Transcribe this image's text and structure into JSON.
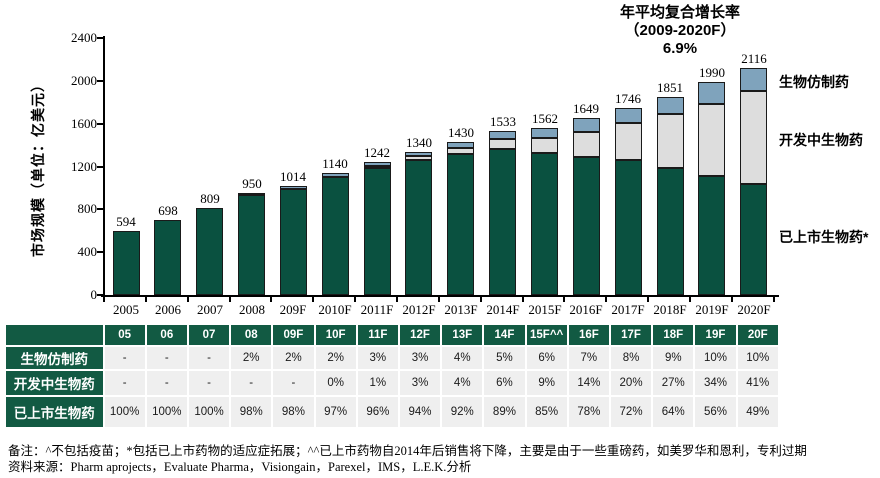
{
  "chart_data": {
    "type": "bar",
    "stacked": true,
    "ylabel": "市场规模（单位：亿美元）",
    "annotation": [
      "年平均复合增长率",
      "（2009-2020F）",
      "6.9%"
    ],
    "categories": [
      "2005",
      "2006",
      "2007",
      "2008",
      "209F",
      "2010F",
      "2011F",
      "2012F",
      "2013F",
      "2014F",
      "2015F",
      "2016F",
      "2017F",
      "2018F",
      "2019F",
      "2020F"
    ],
    "totals": [
      594,
      698,
      809,
      950,
      1014,
      1140,
      1242,
      1340,
      1430,
      1533,
      1562,
      1649,
      1746,
      1851,
      1990,
      2116
    ],
    "series": [
      {
        "name": "已上市生物药",
        "color": "#0A5140",
        "pct": [
          100,
          100,
          100,
          98,
          98,
          97,
          96,
          94,
          92,
          89,
          85,
          78,
          72,
          64,
          56,
          49
        ]
      },
      {
        "name": "开发中生物药",
        "color": "#DDDDDD",
        "pct": [
          0,
          0,
          0,
          0,
          0,
          0,
          1,
          3,
          4,
          6,
          9,
          14,
          20,
          27,
          34,
          41
        ]
      },
      {
        "name": "生物仿制药",
        "color": "#7FA3BC",
        "pct": [
          0,
          0,
          0,
          2,
          2,
          2,
          3,
          3,
          4,
          5,
          6,
          7,
          8,
          9,
          10,
          10
        ]
      }
    ],
    "legend_labels": [
      "生物仿制药",
      "开发中生物药",
      "已上市生物药*"
    ],
    "y_ticks": [
      0,
      400,
      800,
      1200,
      1600,
      2000,
      2400
    ],
    "ylim": [
      0,
      2400
    ],
    "grid": false,
    "legend_position": "right"
  },
  "table": {
    "col_headers": [
      "",
      "05",
      "06",
      "07",
      "08",
      "09F",
      "10F",
      "11F",
      "12F",
      "13F",
      "14F",
      "15F^^",
      "16F",
      "17F",
      "18F",
      "19F",
      "20F"
    ],
    "rows": [
      {
        "label": "生物仿制药",
        "values": [
          "-",
          "-",
          "-",
          "2%",
          "2%",
          "2%",
          "3%",
          "3%",
          "4%",
          "5%",
          "6%",
          "7%",
          "8%",
          "9%",
          "10%",
          "10%"
        ]
      },
      {
        "label": "开发中生物药",
        "values": [
          "-",
          "-",
          "-",
          "-",
          "-",
          "0%",
          "1%",
          "3%",
          "4%",
          "6%",
          "9%",
          "14%",
          "20%",
          "27%",
          "34%",
          "41%"
        ]
      },
      {
        "label": "已上市生物药",
        "values": [
          "100%",
          "100%",
          "100%",
          "98%",
          "98%",
          "97%",
          "96%",
          "94%",
          "92%",
          "89%",
          "85%",
          "78%",
          "72%",
          "64%",
          "56%",
          "49%"
        ]
      }
    ]
  },
  "footer": {
    "note": "备注：^不包括疫苗；*包括已上市药物的适应症拓展；^^已上市药物自2014年后销售将下降，主要是由于一些重磅药，如美罗华和恩利，专利过期",
    "source": "资料来源：Pharm aprojects，Evaluate Pharma，Visiongain，Parexel，IMS，L.E.K.分析"
  },
  "colors": {
    "bar_marketed_green": "#0A5140",
    "bar_development_gray": "#DDDDDD",
    "bar_biosimilar_blue": "#7FA3BC",
    "table_green": "#125A43",
    "cell_gray": "#EFEFEF",
    "bar_border": "#1A1A1A"
  }
}
